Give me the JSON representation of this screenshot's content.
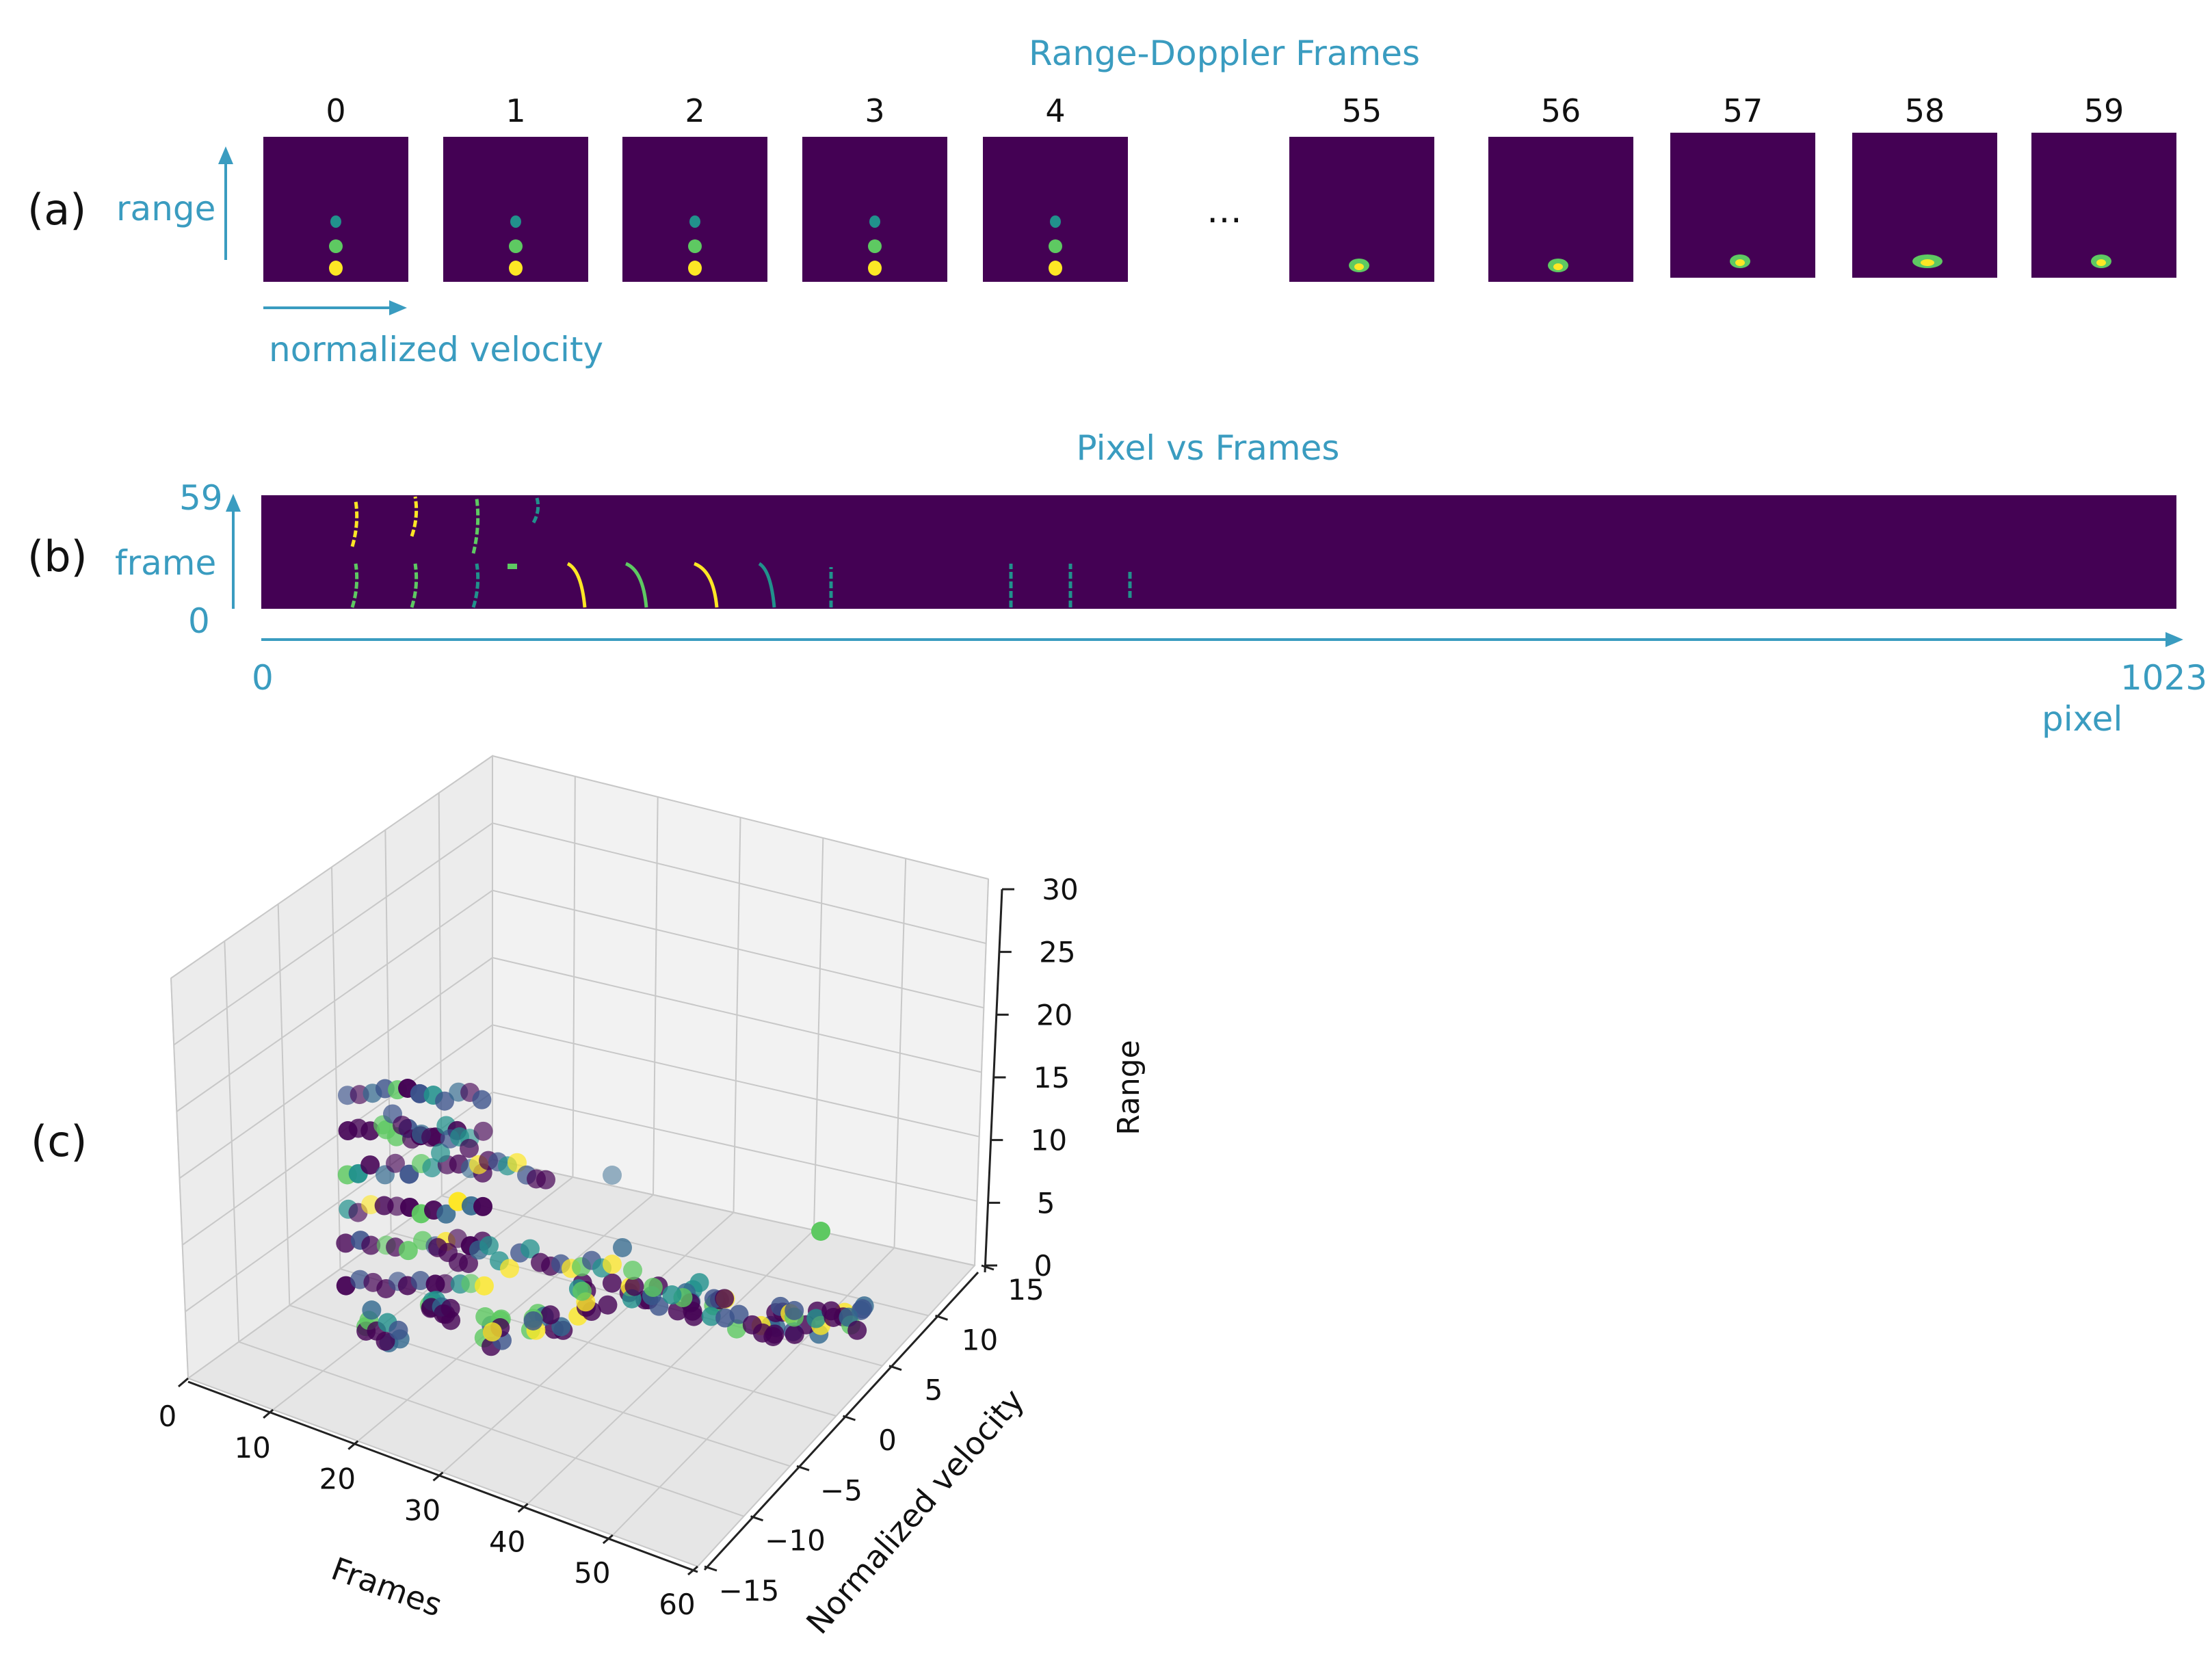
{
  "colors": {
    "accent": "#3a9cc0",
    "viridis_bg": "#440154",
    "viridis_mid": "#21918c",
    "viridis_high": "#5ec962",
    "viridis_peak": "#fde725",
    "axis_pane": "#f2f2f2",
    "grid": "#c8c8c8"
  },
  "panel_a": {
    "label": "(a)",
    "title": "Range-Doppler Frames",
    "y_axis_label": "range",
    "x_axis_label": "normalized velocity",
    "ellipsis": "…",
    "frames": [
      {
        "index": "0",
        "pattern": "three-blobs"
      },
      {
        "index": "1",
        "pattern": "three-blobs"
      },
      {
        "index": "2",
        "pattern": "three-blobs"
      },
      {
        "index": "3",
        "pattern": "three-blobs"
      },
      {
        "index": "4",
        "pattern": "three-blobs"
      },
      {
        "index": "55",
        "pattern": "low-blob"
      },
      {
        "index": "56",
        "pattern": "low-blob"
      },
      {
        "index": "57",
        "pattern": "low-blob"
      },
      {
        "index": "58",
        "pattern": "low-blob-wide"
      },
      {
        "index": "59",
        "pattern": "low-blob"
      }
    ]
  },
  "panel_b": {
    "label": "(b)",
    "title": "Pixel vs Frames",
    "y_axis_label": "frame",
    "y_top": "59",
    "y_bottom": "0",
    "x_left": "0",
    "x_right": "1023",
    "x_axis_label": "pixel"
  },
  "panel_c": {
    "label": "(c)",
    "chart_data": {
      "type": "scatter",
      "x_axis": {
        "label": "Frames",
        "ticks": [
          "0",
          "10",
          "20",
          "30",
          "40",
          "50",
          "60"
        ],
        "range": [
          0,
          60
        ]
      },
      "y_axis": {
        "label": "Normalized velocity",
        "ticks": [
          "−15",
          "−10",
          "−5",
          "0",
          "5",
          "10",
          "15"
        ],
        "range": [
          -15,
          15
        ]
      },
      "z_axis": {
        "label": "Range",
        "ticks": [
          "0",
          "5",
          "10",
          "15",
          "20",
          "25",
          "30"
        ],
        "range": [
          0,
          30
        ]
      },
      "colormap": "viridis",
      "grid": true
    }
  }
}
